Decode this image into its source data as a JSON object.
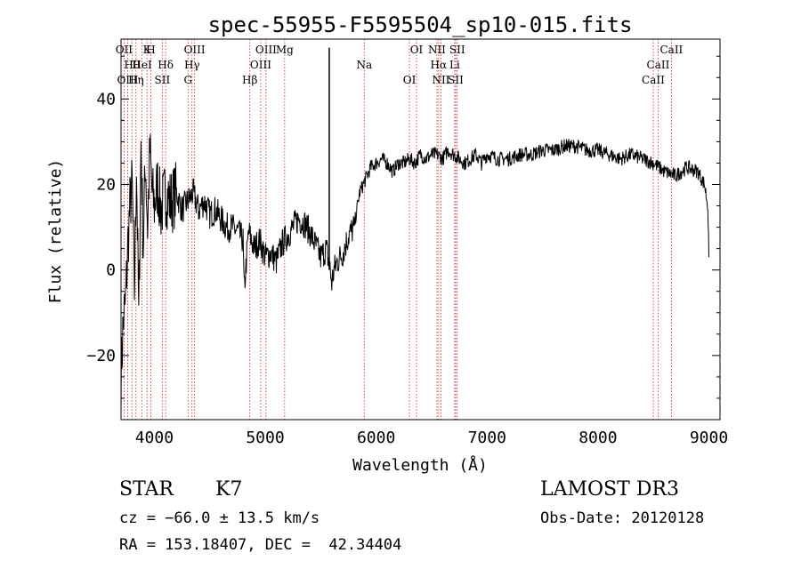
{
  "chart_data": {
    "type": "line",
    "title": "spec-55955-F5595504_sp10-015.fits",
    "xlabel": "Wavelength (Å)",
    "ylabel": "Flux (relative)",
    "xlim": [
      3700,
      9100
    ],
    "ylim": [
      -35,
      54
    ],
    "xticks": [
      4000,
      5000,
      6000,
      7000,
      8000,
      9000
    ],
    "yticks": [
      -20,
      0,
      20,
      40
    ],
    "grid": false,
    "legend": "none",
    "colors": {
      "spectrum": "#000000",
      "lines": "#cc2222"
    },
    "series": [
      {
        "x": [
          3700,
          3720,
          3740,
          3760,
          3780,
          3800,
          3820,
          3840,
          3860,
          3880,
          3900,
          3920,
          3940,
          3960,
          3980,
          4000,
          4030,
          4060,
          4100,
          4150,
          4200,
          4250,
          4300,
          4350,
          4400,
          4450,
          4500,
          4550,
          4600,
          4650,
          4700,
          4750,
          4800,
          4810,
          4850,
          4900,
          4950,
          5000,
          5050,
          5100,
          5150,
          5200,
          5250,
          5300,
          5350,
          5400,
          5450,
          5500,
          5550,
          5580,
          5600,
          5620,
          5650,
          5700,
          5750,
          5800,
          5850,
          5900,
          5950,
          6000,
          6050,
          6100,
          6150,
          6200,
          6250,
          6300,
          6350,
          6400,
          6450,
          6500,
          6550,
          6600,
          6650,
          6700,
          6750,
          6800,
          6850,
          6900,
          6950,
          7000,
          7100,
          7200,
          7300,
          7400,
          7500,
          7600,
          7700,
          7800,
          7900,
          8000,
          8100,
          8200,
          8300,
          8400,
          8500,
          8600,
          8700,
          8800,
          8900,
          8960,
          8990,
          9000
        ],
        "y": [
          -25,
          -12,
          -8,
          5,
          15,
          20,
          -5,
          25,
          -12,
          30,
          5,
          26,
          10,
          28,
          18,
          15,
          20,
          14,
          18,
          16,
          18,
          14,
          16,
          18,
          14,
          16,
          13,
          14,
          12,
          10,
          10,
          9,
          7,
          -5,
          9,
          5,
          7,
          3,
          4,
          2,
          6,
          8,
          10,
          12,
          11,
          9,
          6,
          3,
          5,
          1,
          -3,
          0,
          2,
          4,
          8,
          10,
          18,
          21,
          24,
          25,
          26,
          25,
          23,
          25,
          25,
          26,
          25,
          27,
          26,
          27,
          27,
          26,
          28,
          27,
          26,
          25,
          26,
          27,
          25,
          27,
          26,
          26,
          27,
          27,
          28,
          28,
          29,
          29,
          28,
          28,
          27,
          26,
          27,
          26,
          25,
          23,
          22,
          24,
          23,
          20,
          15,
          3
        ]
      }
    ],
    "annotations": [
      {
        "label": "OII",
        "x": 3727
      },
      {
        "label": "Hθ",
        "x": 3798
      },
      {
        "label": "OIII",
        "x": 3760
      },
      {
        "label": "K",
        "x": 3934
      },
      {
        "label": "HeI",
        "x": 3889
      },
      {
        "label": "Hη",
        "x": 3835
      },
      {
        "label": "H",
        "x": 3969
      },
      {
        "label": "Hδ",
        "x": 4102
      },
      {
        "label": "SII",
        "x": 4072
      },
      {
        "label": "OIII",
        "x": 4363
      },
      {
        "label": "Hγ",
        "x": 4340
      },
      {
        "label": "G",
        "x": 4304
      },
      {
        "label": "OIII",
        "x": 5007
      },
      {
        "label": "OIII",
        "x": 4959
      },
      {
        "label": "Hβ",
        "x": 4861
      },
      {
        "label": "Mg",
        "x": 5175
      },
      {
        "label": "Na",
        "x": 5893
      },
      {
        "label": "OI",
        "x": 6300
      },
      {
        "label": "OI",
        "x": 6364
      },
      {
        "label": "Hα",
        "x": 6563
      },
      {
        "label": "SII",
        "x": 6717
      },
      {
        "label": "NII",
        "x": 6548
      },
      {
        "label": "Li",
        "x": 6708
      },
      {
        "label": "NII",
        "x": 6584
      },
      {
        "label": "SII",
        "x": 6731
      },
      {
        "label": "CaII",
        "x": 8542
      },
      {
        "label": "CaII",
        "x": 8498
      },
      {
        "label": "CaII",
        "x": 8662
      }
    ]
  },
  "info": {
    "object_type": "STAR",
    "subclass": "K7",
    "survey": "LAMOST DR3",
    "cz": "cz = −66.0 ± 13.5 km/s",
    "obs_date": "Obs-Date: 20120128",
    "coords": "RA = 153.18407, DEC =  42.34404"
  }
}
